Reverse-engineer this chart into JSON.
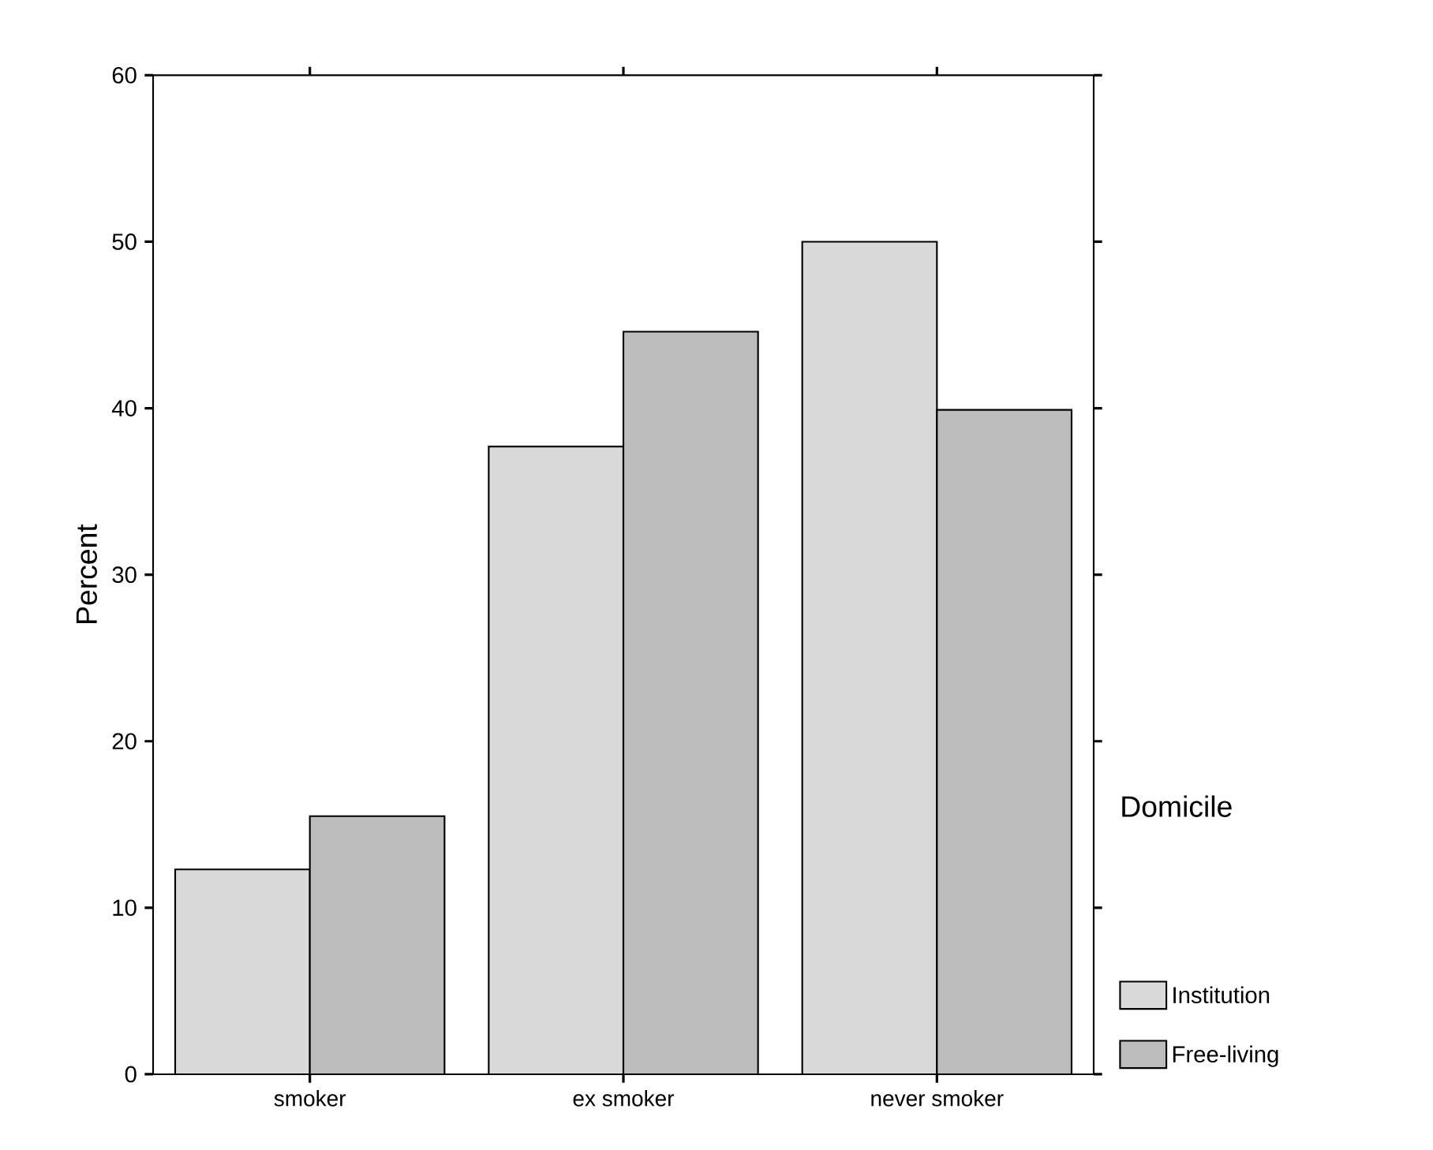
{
  "chart_data": {
    "type": "bar",
    "ylabel": "Percent",
    "legend_title": "Domicile",
    "legend": "right",
    "categories": [
      "smoker",
      "ex smoker",
      "never smoker"
    ],
    "series": [
      {
        "name": "Institution",
        "color": "#dadada",
        "values": [
          12.3,
          37.7,
          50.0
        ]
      },
      {
        "name": "Free-living",
        "color": "#bcbcbc",
        "values": [
          15.5,
          44.6,
          39.9
        ]
      }
    ],
    "ylim": [
      0,
      60
    ],
    "yticks": [
      0,
      10,
      20,
      30,
      40,
      50,
      60
    ]
  }
}
